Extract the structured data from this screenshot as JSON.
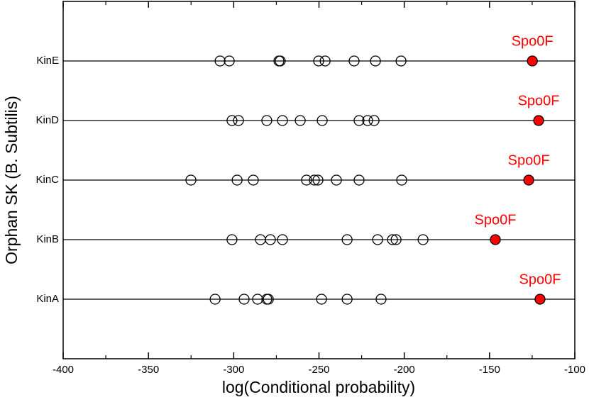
{
  "chart_data": {
    "type": "strip",
    "x_label": "log(Conditional probability)",
    "y_label": "Orphan SK (B. Subtilis)",
    "xlim": [
      -400,
      -100
    ],
    "xticks": [
      -400,
      -350,
      -300,
      -250,
      -200,
      -150,
      -100
    ],
    "xminorticks": [
      -375,
      -325,
      -275,
      -225,
      -175,
      -125
    ],
    "marker_color": "#000000",
    "rows": [
      {
        "name": "KinE",
        "values": [
          -308.0,
          -302.6,
          -273.5,
          -272.7,
          -250.2,
          -246.4,
          -229.4,
          -216.9,
          -201.9
        ],
        "highlight": {
          "label": "Spo0F",
          "value": -124.9,
          "color": "#ff0000"
        }
      },
      {
        "name": "KinD",
        "values": [
          -301.0,
          -297.2,
          -280.6,
          -271.4,
          -261.0,
          -248.1,
          -226.5,
          -221.5,
          -217.7
        ],
        "highlight": {
          "label": "Spo0F",
          "value": -121.2,
          "color": "#ff0000"
        }
      },
      {
        "name": "KinC",
        "values": [
          -325.1,
          -298.0,
          -288.5,
          -257.3,
          -252.7,
          -250.6,
          -239.8,
          -226.5,
          -201.5
        ],
        "highlight": {
          "label": "Spo0F",
          "value": -127.0,
          "color": "#ff0000"
        }
      },
      {
        "name": "KinB",
        "values": [
          -301.0,
          -284.3,
          -278.5,
          -271.4,
          -233.5,
          -215.6,
          -206.9,
          -204.8,
          -189.0
        ],
        "highlight": {
          "label": "Spo0F",
          "value": -146.6,
          "color": "#ff0000"
        }
      },
      {
        "name": "KinA",
        "values": [
          -310.9,
          -293.9,
          -286.0,
          -280.6,
          -279.7,
          -248.5,
          -233.5,
          -213.6
        ],
        "highlight": {
          "label": "Spo0F",
          "value": -120.4,
          "color": "#ff0000"
        }
      }
    ]
  }
}
